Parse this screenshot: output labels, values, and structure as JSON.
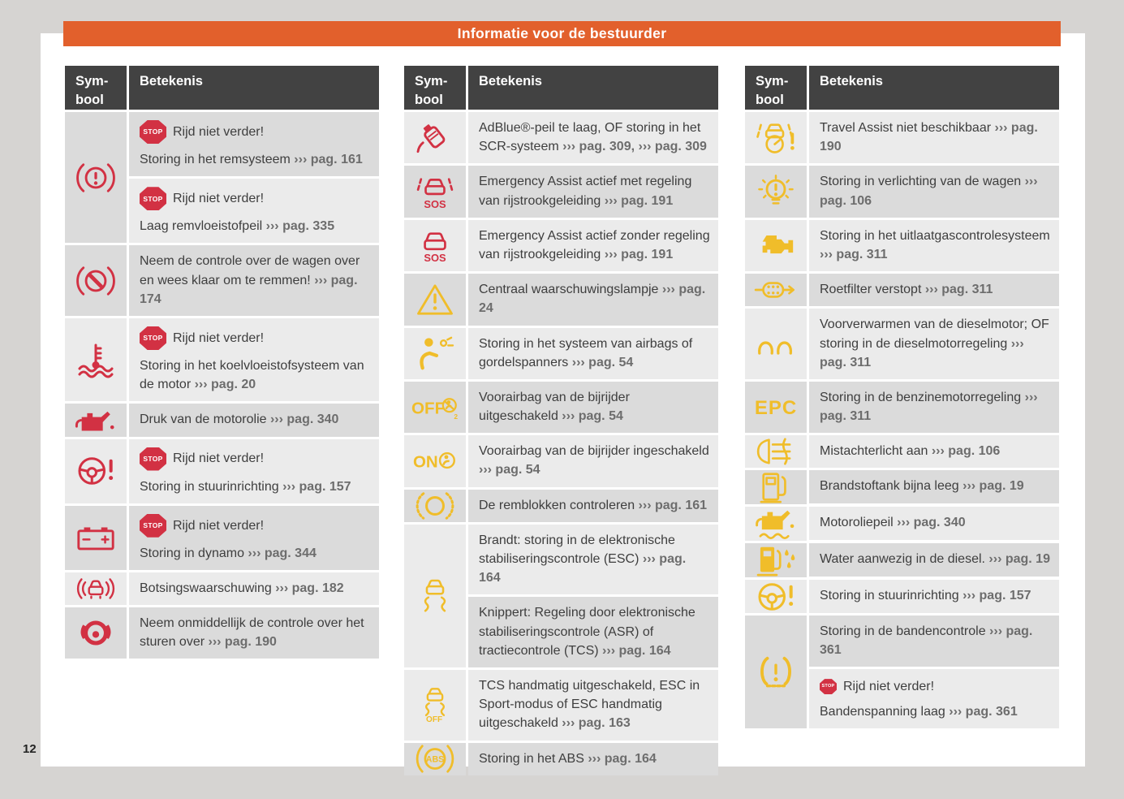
{
  "title": "Informatie voor de bestuurder",
  "page_number": "12",
  "table_headers": {
    "symbol": "Sym-bool",
    "meaning": "Betekenis"
  },
  "stop_badge": "STOP",
  "icon_glyphs": {
    "sos": "SOS",
    "abs": "ABS",
    "epc": "EPC",
    "off": "OFF",
    "on": "ON",
    "sub2": "2"
  },
  "colors": {
    "accent_orange": "#e2602c",
    "header_dark": "#424242",
    "warning_red": "#d23143",
    "warning_yellow": "#f0bd2a",
    "row_light": "#ebebeb",
    "row_dark": "#dbdbdb",
    "text": "#3e3e3e",
    "ref_gray": "#6d6d6d",
    "page_bg": "#ffffff",
    "outer_bg": "#d6d4d2"
  },
  "tables": [
    {
      "rows": [
        {
          "icon": "brake-warning-icon",
          "color": "red",
          "sym_bg": "dark",
          "cells": [
            {
              "bg": "dark",
              "stop_label": "Rijd niet verder!",
              "lines": [
                [
                  {
                    "t": "Storing in het remsysteem "
                  },
                  {
                    "t": "››› pag. 161",
                    "b": 1
                  }
                ]
              ]
            },
            {
              "bg": "light",
              "stop_label": "Rijd niet verder!",
              "lines": [
                [
                  {
                    "t": "Laag remvloeistofpeil "
                  },
                  {
                    "t": "››› pag. 335",
                    "b": 1
                  }
                ]
              ]
            }
          ]
        },
        {
          "icon": "brake-takeover-icon",
          "color": "red",
          "sym_bg": "dark",
          "cells": [
            {
              "bg": "dark",
              "lines": [
                [
                  {
                    "t": "Neem de controle over de wagen over en wees klaar om te remmen! "
                  },
                  {
                    "t": "››› pag. 174",
                    "b": 1
                  }
                ]
              ]
            }
          ]
        },
        {
          "icon": "coolant-temperature-icon",
          "color": "red",
          "sym_bg": "light",
          "cells": [
            {
              "bg": "light",
              "stop_label": "Rijd niet verder!",
              "lines": [
                [
                  {
                    "t": "Storing in het koelvloeistofsysteem van de motor "
                  },
                  {
                    "t": "››› pag. 20",
                    "b": 1
                  }
                ]
              ]
            }
          ]
        },
        {
          "icon": "oil-pressure-icon",
          "color": "red",
          "sym_bg": "dark",
          "cells": [
            {
              "bg": "dark",
              "lines": [
                [
                  {
                    "t": "Druk van de motorolie "
                  },
                  {
                    "t": "››› pag. 340",
                    "b": 1
                  }
                ]
              ]
            }
          ]
        },
        {
          "icon": "steering-wheel-warning-icon",
          "color": "red",
          "sym_bg": "light",
          "cells": [
            {
              "bg": "light",
              "stop_label": "Rijd niet verder!",
              "lines": [
                [
                  {
                    "t": "Storing in stuurinrichting "
                  },
                  {
                    "t": "››› pag. 157",
                    "b": 1
                  }
                ]
              ]
            }
          ]
        },
        {
          "icon": "battery-icon",
          "color": "red",
          "sym_bg": "dark",
          "cells": [
            {
              "bg": "dark",
              "stop_label": "Rijd niet verder!",
              "lines": [
                [
                  {
                    "t": "Storing in dynamo "
                  },
                  {
                    "t": "››› pag. 344",
                    "b": 1
                  }
                ]
              ]
            }
          ]
        },
        {
          "icon": "collision-warning-icon",
          "color": "red",
          "sym_bg": "light",
          "cells": [
            {
              "bg": "light",
              "lines": [
                [
                  {
                    "t": "Botsingswaarschuwing "
                  },
                  {
                    "t": "››› pag. 182",
                    "b": 1
                  }
                ]
              ]
            }
          ]
        },
        {
          "icon": "hands-on-steering-icon",
          "color": "red",
          "sym_bg": "dark",
          "cells": [
            {
              "bg": "dark",
              "lines": [
                [
                  {
                    "t": "Neem onmiddellijk de controle over het sturen over "
                  },
                  {
                    "t": "››› pag. 190",
                    "b": 1
                  }
                ]
              ]
            }
          ]
        }
      ]
    },
    {
      "rows": [
        {
          "icon": "adblue-icon",
          "color": "red",
          "sym_bg": "light",
          "cells": [
            {
              "bg": "light",
              "lines": [
                [
                  {
                    "t": "AdBlue®-peil te laag, OF storing in het SCR-systeem "
                  },
                  {
                    "t": "››› pag. 309,",
                    "b": 1
                  },
                  {
                    "t": " "
                  },
                  {
                    "t": "››› pag. 309",
                    "b": 1
                  }
                ]
              ]
            }
          ]
        },
        {
          "icon": "emergency-assist-lane-icon",
          "color": "red",
          "sym_bg": "dark",
          "cells": [
            {
              "bg": "dark",
              "lines": [
                [
                  {
                    "t": "Emergency Assist actief met regeling van rijstrookgeleiding "
                  },
                  {
                    "t": "››› pag. 191",
                    "b": 1
                  }
                ]
              ]
            }
          ]
        },
        {
          "icon": "emergency-assist-icon",
          "color": "red",
          "sym_bg": "light",
          "cells": [
            {
              "bg": "light",
              "lines": [
                [
                  {
                    "t": "Emergency Assist actief zonder regeling van rijstrookgeleiding "
                  },
                  {
                    "t": "››› pag. 191",
                    "b": 1
                  }
                ]
              ]
            }
          ]
        },
        {
          "icon": "warning-triangle-icon",
          "color": "yellow",
          "sym_bg": "dark",
          "cells": [
            {
              "bg": "dark",
              "lines": [
                [
                  {
                    "t": "Centraal waarschuwingslampje "
                  },
                  {
                    "t": "››› pag. 24",
                    "b": 1
                  }
                ]
              ]
            }
          ]
        },
        {
          "icon": "airbag-warning-icon",
          "color": "yellow",
          "sym_bg": "light",
          "cells": [
            {
              "bg": "light",
              "lines": [
                [
                  {
                    "t": "Storing in het systeem van airbags of gordelspanners "
                  },
                  {
                    "t": "››› pag. 54",
                    "b": 1
                  }
                ]
              ]
            }
          ]
        },
        {
          "icon": "airbag-off-icon",
          "color": "yellow",
          "sym_bg": "dark",
          "cells": [
            {
              "bg": "dark",
              "lines": [
                [
                  {
                    "t": "Voorairbag van de bijrijder uitgeschakeld "
                  },
                  {
                    "t": "››› pag. 54",
                    "b": 1
                  }
                ]
              ]
            }
          ]
        },
        {
          "icon": "airbag-on-icon",
          "color": "yellow",
          "sym_bg": "light",
          "cells": [
            {
              "bg": "light",
              "lines": [
                [
                  {
                    "t": "Voorairbag van de bijrijder ingeschakeld "
                  },
                  {
                    "t": "››› pag. 54",
                    "b": 1
                  }
                ]
              ]
            }
          ]
        },
        {
          "icon": "brake-pads-icon",
          "color": "yellow",
          "sym_bg": "dark",
          "cells": [
            {
              "bg": "dark",
              "lines": [
                [
                  {
                    "t": "De remblokken controleren "
                  },
                  {
                    "t": "››› pag. 161",
                    "b": 1
                  }
                ]
              ]
            }
          ]
        },
        {
          "icon": "esc-icon",
          "color": "yellow",
          "sym_bg": "light",
          "cells": [
            {
              "bg": "light",
              "lines": [
                [
                  {
                    "t": "Brandt: storing in de elektronische stabiliseringscontrole (ESC) "
                  },
                  {
                    "t": "››› pag. 164",
                    "b": 1
                  }
                ]
              ]
            },
            {
              "bg": "dark",
              "lines": [
                [
                  {
                    "t": "Knippert: Regeling door elektronische stabiliseringscontrole (ASR) of tractiecontrole (TCS) "
                  },
                  {
                    "t": "››› pag. 164",
                    "b": 1
                  }
                ]
              ]
            }
          ]
        },
        {
          "icon": "esc-off-icon",
          "color": "yellow",
          "sym_bg": "light",
          "cells": [
            {
              "bg": "light",
              "lines": [
                [
                  {
                    "t": "TCS handmatig uitgeschakeld, ESC in Sport-modus of ESC handmatig uitgeschakeld "
                  },
                  {
                    "t": "››› pag. 163",
                    "b": 1
                  }
                ]
              ]
            }
          ]
        },
        {
          "icon": "abs-icon",
          "color": "yellow",
          "sym_bg": "dark",
          "cells": [
            {
              "bg": "dark",
              "lines": [
                [
                  {
                    "t": "Storing in het ABS "
                  },
                  {
                    "t": "››› pag. 164",
                    "b": 1
                  }
                ]
              ]
            }
          ]
        }
      ]
    },
    {
      "rows": [
        {
          "icon": "travel-assist-icon",
          "color": "yellow",
          "sym_bg": "light",
          "cells": [
            {
              "bg": "light",
              "lines": [
                [
                  {
                    "t": "Travel Assist niet beschikbaar "
                  },
                  {
                    "t": "››› pag. 190",
                    "b": 1
                  }
                ]
              ]
            }
          ]
        },
        {
          "icon": "light-fault-icon",
          "color": "yellow",
          "sym_bg": "dark",
          "cells": [
            {
              "bg": "dark",
              "lines": [
                [
                  {
                    "t": "Storing in verlichting van de wagen "
                  },
                  {
                    "t": "››› pag. 106",
                    "b": 1
                  }
                ]
              ]
            }
          ]
        },
        {
          "icon": "check-engine-icon",
          "color": "yellow",
          "sym_bg": "light",
          "cells": [
            {
              "bg": "light",
              "lines": [
                [
                  {
                    "t": "Storing in het uitlaatgascontrolesysteem "
                  },
                  {
                    "t": "››› pag. 311",
                    "b": 1
                  }
                ]
              ]
            }
          ]
        },
        {
          "icon": "particulate-filter-icon",
          "color": "yellow",
          "sym_bg": "dark",
          "cells": [
            {
              "bg": "dark",
              "lines": [
                [
                  {
                    "t": "Roetfilter verstopt "
                  },
                  {
                    "t": "››› pag. 311",
                    "b": 1
                  }
                ]
              ]
            }
          ]
        },
        {
          "icon": "glow-plug-icon",
          "color": "yellow",
          "sym_bg": "light",
          "cells": [
            {
              "bg": "light",
              "lines": [
                [
                  {
                    "t": "Voorverwarmen van de dieselmotor; OF storing in de dieselmotorregeling "
                  },
                  {
                    "t": "››› pag. 311",
                    "b": 1
                  }
                ]
              ]
            }
          ]
        },
        {
          "icon": "epc-icon",
          "color": "yellow",
          "sym_bg": "dark",
          "cells": [
            {
              "bg": "dark",
              "lines": [
                [
                  {
                    "t": "Storing in de benzinemotorregeling "
                  },
                  {
                    "t": "››› pag. 311",
                    "b": 1
                  }
                ]
              ]
            }
          ]
        },
        {
          "icon": "rear-fog-light-icon",
          "color": "yellow",
          "sym_bg": "light",
          "cells": [
            {
              "bg": "light",
              "lines": [
                [
                  {
                    "t": "Mistachterlicht aan "
                  },
                  {
                    "t": "››› pag. 106",
                    "b": 1
                  }
                ]
              ]
            }
          ]
        },
        {
          "icon": "fuel-low-icon",
          "color": "yellow",
          "sym_bg": "dark",
          "cells": [
            {
              "bg": "dark",
              "lines": [
                [
                  {
                    "t": "Brandstoftank bijna leeg "
                  },
                  {
                    "t": "››› pag. 19",
                    "b": 1
                  }
                ]
              ]
            }
          ]
        },
        {
          "icon": "oil-level-icon",
          "color": "yellow",
          "sym_bg": "light",
          "cells": [
            {
              "bg": "light",
              "lines": [
                [
                  {
                    "t": "Motoroliepeil "
                  },
                  {
                    "t": "››› pag. 340",
                    "b": 1
                  }
                ]
              ]
            }
          ]
        },
        {
          "icon": "water-in-diesel-icon",
          "color": "yellow",
          "sym_bg": "dark",
          "cells": [
            {
              "bg": "dark",
              "lines": [
                [
                  {
                    "t": "Water aanwezig in de diesel. "
                  },
                  {
                    "t": "››› pag. 19",
                    "b": 1
                  }
                ]
              ]
            }
          ]
        },
        {
          "icon": "steering-wheel-warning-icon",
          "color": "yellow",
          "sym_bg": "light",
          "cells": [
            {
              "bg": "light",
              "lines": [
                [
                  {
                    "t": "Storing in stuurinrichting "
                  },
                  {
                    "t": "››› pag. 157",
                    "b": 1
                  }
                ]
              ]
            }
          ]
        },
        {
          "icon": "tpms-icon",
          "color": "yellow",
          "sym_bg": "dark",
          "cells": [
            {
              "bg": "dark",
              "lines": [
                [
                  {
                    "t": "Storing in de bandencontrole "
                  },
                  {
                    "t": "››› pag. 361",
                    "b": 1
                  }
                ]
              ]
            },
            {
              "bg": "light",
              "stop_label": "Rijd niet verder!",
              "small_stop": true,
              "lines": [
                [
                  {
                    "t": "Bandenspanning laag "
                  },
                  {
                    "t": "››› pag. 361",
                    "b": 1
                  }
                ]
              ]
            }
          ]
        }
      ]
    }
  ]
}
